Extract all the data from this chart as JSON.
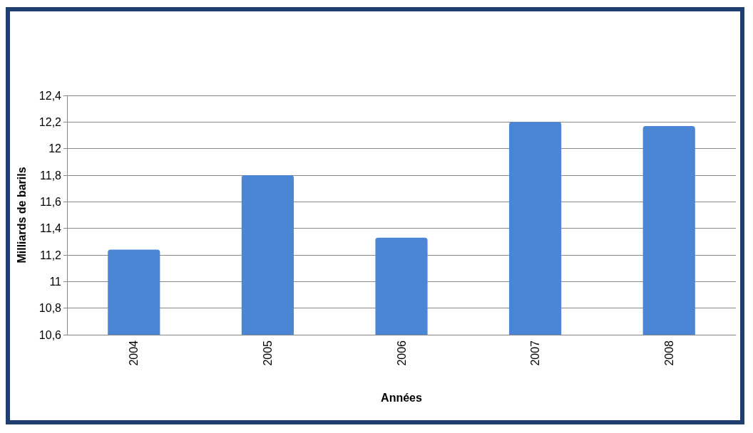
{
  "chart_data": {
    "type": "bar",
    "xlabel": "Années",
    "ylabel": "Milliards de barils",
    "categories": [
      "2004",
      "2005",
      "2006",
      "2007",
      "2008"
    ],
    "values": [
      11.24,
      11.8,
      11.33,
      12.2,
      12.17
    ],
    "color": "#4a86d4",
    "ylim": [
      10.6,
      12.4
    ],
    "yticks": [
      {
        "value": 10.6,
        "label": "10,6"
      },
      {
        "value": 10.8,
        "label": "10,8"
      },
      11,
      {
        "value": 11.2,
        "label": "11,2"
      },
      {
        "value": 11.4,
        "label": "11,4"
      },
      {
        "value": 11.6,
        "label": "11,6"
      },
      {
        "value": 11.8,
        "label": "11,8"
      },
      12,
      {
        "value": 12.2,
        "label": "12,2"
      },
      {
        "value": 12.4,
        "label": "12,4"
      }
    ],
    "grid": "y"
  }
}
